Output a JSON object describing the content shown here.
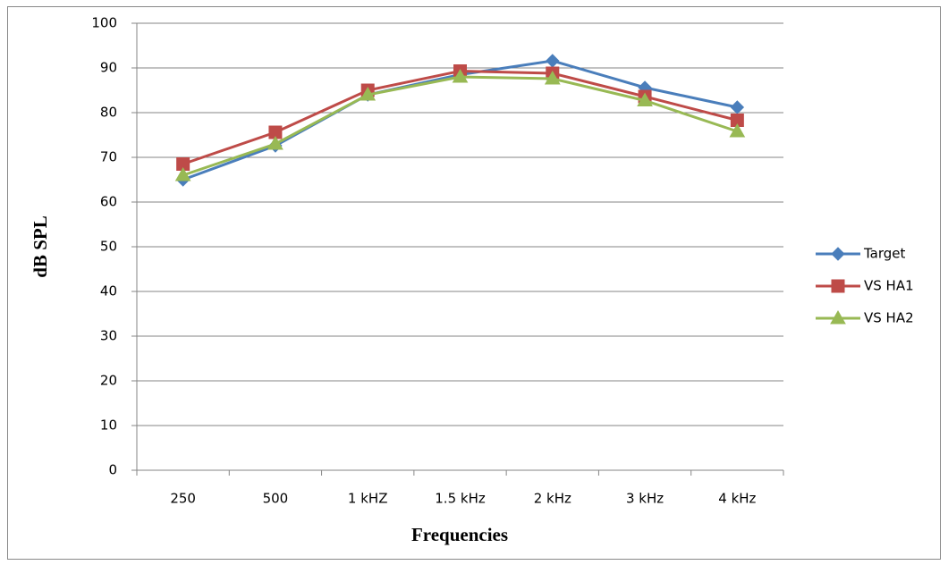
{
  "chart_data": {
    "type": "line",
    "x_label": "Frequencies",
    "y_label": "dB SPL",
    "categories": [
      "250",
      "500",
      "1 kHZ",
      "1.5 kHz",
      "2 kHz",
      "3 kHz",
      "4 kHz"
    ],
    "series": [
      {
        "name": "Target",
        "color": "#4a7ebb",
        "marker": "diamond",
        "values": [
          65,
          72.6,
          84,
          88.5,
          91.6,
          85.6,
          81.2
        ]
      },
      {
        "name": "VS HA1",
        "color": "#be4b48",
        "marker": "square",
        "values": [
          68.5,
          75.6,
          85,
          89.3,
          88.8,
          83.6,
          78.3
        ]
      },
      {
        "name": "VS HA2",
        "color": "#98b954",
        "marker": "triangle",
        "values": [
          66,
          73,
          84,
          88,
          87.6,
          82.7,
          75.8
        ]
      }
    ],
    "ylim": [
      0,
      100
    ],
    "yticks": [
      0,
      10,
      20,
      30,
      40,
      50,
      60,
      70,
      80,
      90,
      100
    ],
    "grid": true,
    "legend": "right"
  }
}
